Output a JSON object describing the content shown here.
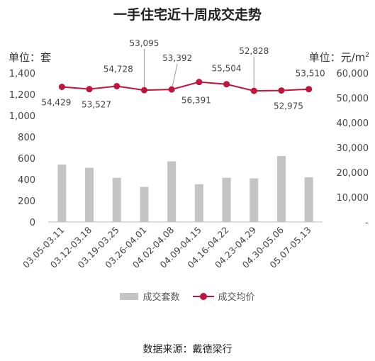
{
  "title": "一手住宅近十周成交走势",
  "unit_left": "单位：套",
  "unit_right": "单位：元/m",
  "unit_right_sup": "2",
  "source": "数据来源：戴德梁行",
  "legend": {
    "bars": "成交套数",
    "line": "成交均价"
  },
  "colors": {
    "bar": "#c4c4c4",
    "line": "#c0143c"
  },
  "chart_data": {
    "type": "bar+line",
    "categories": [
      "03.05-03.11",
      "03.12-03.18",
      "03.19-03.25",
      "03.26-04.01",
      "04.02-04.08",
      "04.09-04.15",
      "04.16-04.22",
      "04.23-04.29",
      "04.30-05.06",
      "05.07-05.13"
    ],
    "bars": {
      "name": "成交套数",
      "values": [
        540,
        510,
        415,
        330,
        570,
        355,
        415,
        410,
        620,
        420
      ]
    },
    "line": {
      "name": "成交均价",
      "values": [
        54429,
        53527,
        54728,
        53095,
        53392,
        56391,
        55504,
        52828,
        52975,
        53510
      ]
    },
    "line_labels": [
      "54,429",
      "53,527",
      "54,728",
      "53,095",
      "53,392",
      "56,391",
      "55,504",
      "52,828",
      "52,975",
      "53,510"
    ],
    "y_left": {
      "ticks": [
        "0",
        "200",
        "400",
        "600",
        "800",
        "1,000",
        "1,200",
        "1,400"
      ],
      "values": [
        0,
        200,
        400,
        600,
        800,
        1000,
        1200,
        1400
      ],
      "range": [
        0,
        1400
      ]
    },
    "y_right": {
      "ticks": [
        "-",
        "10,000",
        "20,000",
        "30,000",
        "40,000",
        "50,000",
        "60,000"
      ],
      "values": [
        0,
        10000,
        20000,
        30000,
        40000,
        50000,
        60000
      ],
      "range": [
        0,
        60000
      ]
    },
    "grid": false,
    "legend_position": "bottom"
  }
}
